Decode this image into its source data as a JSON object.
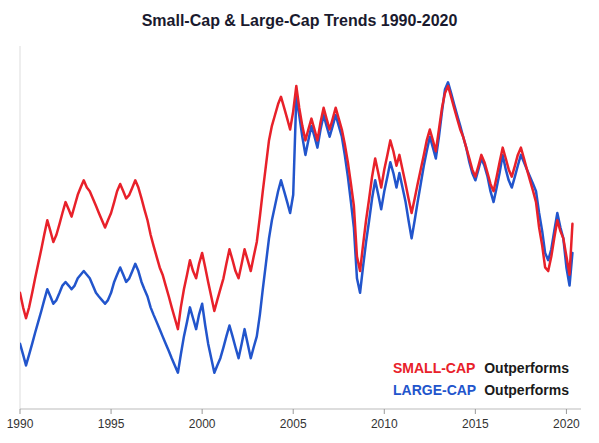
{
  "chart_data": {
    "type": "line",
    "title": "Small-Cap & Large-Cap Trends 1990-2020",
    "x": [
      1990.0,
      1990.17,
      1990.33,
      1990.5,
      1990.67,
      1990.83,
      1991.0,
      1991.17,
      1991.33,
      1991.5,
      1991.67,
      1991.83,
      1992.0,
      1992.17,
      1992.33,
      1992.5,
      1992.67,
      1992.83,
      1993.0,
      1993.17,
      1993.33,
      1993.5,
      1993.67,
      1993.83,
      1994.0,
      1994.17,
      1994.33,
      1994.5,
      1994.67,
      1994.83,
      1995.0,
      1995.17,
      1995.33,
      1995.5,
      1995.67,
      1995.83,
      1996.0,
      1996.17,
      1996.33,
      1996.5,
      1996.67,
      1996.83,
      1997.0,
      1997.17,
      1997.33,
      1997.5,
      1997.67,
      1997.83,
      1998.0,
      1998.17,
      1998.33,
      1998.5,
      1998.67,
      1998.83,
      1999.0,
      1999.17,
      1999.33,
      1999.5,
      1999.67,
      1999.83,
      2000.0,
      2000.17,
      2000.33,
      2000.5,
      2000.67,
      2000.83,
      2001.0,
      2001.17,
      2001.33,
      2001.5,
      2001.67,
      2001.83,
      2002.0,
      2002.17,
      2002.33,
      2002.5,
      2002.67,
      2002.83,
      2003.0,
      2003.17,
      2003.33,
      2003.5,
      2003.67,
      2003.83,
      2004.0,
      2004.17,
      2004.33,
      2004.5,
      2004.67,
      2004.83,
      2005.0,
      2005.17,
      2005.33,
      2005.5,
      2005.67,
      2005.83,
      2006.0,
      2006.17,
      2006.33,
      2006.5,
      2006.67,
      2006.83,
      2007.0,
      2007.17,
      2007.33,
      2007.5,
      2007.67,
      2007.83,
      2008.0,
      2008.17,
      2008.33,
      2008.5,
      2008.67,
      2008.83,
      2009.0,
      2009.17,
      2009.33,
      2009.5,
      2009.67,
      2009.83,
      2010.0,
      2010.17,
      2010.33,
      2010.5,
      2010.67,
      2010.83,
      2011.0,
      2011.17,
      2011.33,
      2011.5,
      2011.67,
      2011.83,
      2012.0,
      2012.17,
      2012.33,
      2012.5,
      2012.67,
      2012.83,
      2013.0,
      2013.17,
      2013.33,
      2013.5,
      2013.67,
      2013.83,
      2014.0,
      2014.17,
      2014.33,
      2014.5,
      2014.67,
      2014.83,
      2015.0,
      2015.17,
      2015.33,
      2015.5,
      2015.67,
      2015.83,
      2016.0,
      2016.17,
      2016.33,
      2016.5,
      2016.67,
      2016.83,
      2017.0,
      2017.17,
      2017.33,
      2017.5,
      2017.67,
      2017.83,
      2018.0,
      2018.17,
      2018.33,
      2018.5,
      2018.67,
      2018.83,
      2019.0,
      2019.17,
      2019.33,
      2019.5,
      2019.67,
      2019.83,
      2020.0,
      2020.17,
      2020.33
    ],
    "series": [
      {
        "name": "LARGE-CAP",
        "color": "#2255cc",
        "values": [
          28,
          25,
          22,
          25,
          28,
          31,
          34,
          37,
          40,
          43,
          41,
          39,
          40,
          42,
          44,
          45,
          44,
          43,
          44,
          46,
          47,
          48,
          47,
          46,
          44,
          42,
          41,
          40,
          39,
          40,
          42,
          45,
          47,
          49,
          47,
          45,
          46,
          48,
          50,
          48,
          45,
          43,
          41,
          38,
          36,
          34,
          32,
          30,
          28,
          26,
          24,
          22,
          20,
          25,
          30,
          34,
          38,
          35,
          32,
          36,
          39,
          33,
          28,
          24,
          20,
          22,
          24,
          27,
          30,
          33,
          30,
          27,
          24,
          28,
          32,
          28,
          24,
          27,
          30,
          36,
          43,
          50,
          57,
          62,
          66,
          70,
          73,
          70,
          67,
          64,
          69,
          96,
          91,
          85,
          80,
          84,
          88,
          85,
          82,
          87,
          91,
          88,
          85,
          88,
          91,
          88,
          85,
          80,
          74,
          67,
          60,
          46,
          42,
          49,
          56,
          62,
          68,
          73,
          69,
          65,
          70,
          74,
          78,
          75,
          71,
          75,
          71,
          67,
          62,
          57,
          62,
          67,
          72,
          77,
          81,
          85,
          82,
          79,
          85,
          92,
          98,
          100,
          97,
          94,
          91,
          88,
          85,
          82,
          78,
          75,
          73,
          76,
          79,
          77,
          74,
          70,
          67,
          71,
          75,
          80,
          76,
          73,
          71,
          74,
          77,
          80,
          78,
          76,
          74,
          72,
          70,
          64,
          59,
          53,
          51,
          54,
          59,
          64,
          60,
          57,
          49,
          44,
          53
        ]
      },
      {
        "name": "SMALL-CAP",
        "color": "#e8212a",
        "values": [
          42,
          38,
          35,
          38,
          42,
          46,
          50,
          54,
          58,
          62,
          59,
          56,
          58,
          61,
          64,
          67,
          65,
          63,
          66,
          69,
          71,
          73,
          71,
          70,
          68,
          66,
          64,
          62,
          60,
          62,
          64,
          67,
          70,
          72,
          70,
          68,
          69,
          71,
          73,
          71,
          68,
          65,
          62,
          58,
          55,
          52,
          49,
          47,
          44,
          41,
          38,
          35,
          32,
          38,
          43,
          47,
          51,
          48,
          46,
          50,
          53,
          49,
          45,
          41,
          37,
          40,
          43,
          46,
          50,
          54,
          51,
          48,
          46,
          50,
          54,
          51,
          48,
          52,
          56,
          63,
          70,
          77,
          84,
          88,
          91,
          94,
          96,
          93,
          90,
          87,
          92,
          99,
          93,
          88,
          84,
          87,
          90,
          87,
          84,
          89,
          93,
          90,
          87,
          90,
          93,
          90,
          87,
          83,
          78,
          72,
          66,
          52,
          48,
          55,
          62,
          68,
          74,
          79,
          75,
          71,
          76,
          80,
          84,
          81,
          77,
          80,
          76,
          72,
          68,
          64,
          68,
          72,
          76,
          80,
          84,
          87,
          84,
          81,
          87,
          93,
          97,
          99,
          96,
          93,
          90,
          87,
          85,
          82,
          79,
          76,
          74,
          77,
          80,
          78,
          75,
          72,
          70,
          74,
          78,
          82,
          79,
          76,
          74,
          77,
          80,
          82,
          79,
          76,
          73,
          70,
          67,
          60,
          55,
          49,
          48,
          52,
          57,
          62,
          59,
          57,
          52,
          47,
          61
        ]
      }
    ],
    "annotations": [
      "Outperforms",
      "Outperforms"
    ],
    "xlim": [
      1990,
      2020.8
    ],
    "xticks": [
      1990,
      1995,
      2000,
      2005,
      2010,
      2015,
      2020
    ],
    "ylim": [
      10,
      110
    ],
    "yticks": [],
    "grid": false,
    "tick_labels": "x"
  }
}
